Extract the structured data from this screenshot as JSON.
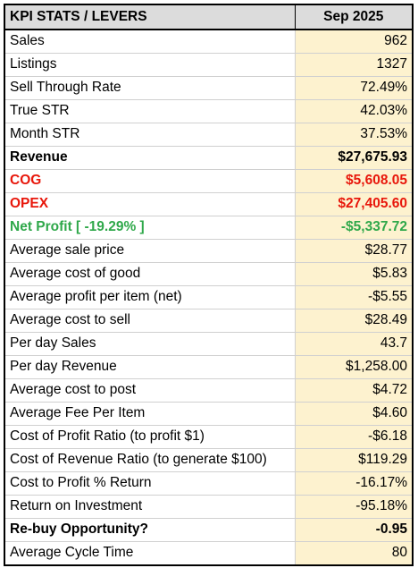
{
  "header": {
    "label": "KPI STATS / LEVERS",
    "period": "Sep 2025"
  },
  "rows": [
    {
      "label": "Sales",
      "value": "962",
      "style": ""
    },
    {
      "label": "Listings",
      "value": "1327",
      "style": ""
    },
    {
      "label": "Sell Through Rate",
      "value": "72.49%",
      "style": ""
    },
    {
      "label": "True STR",
      "value": "42.03%",
      "style": ""
    },
    {
      "label": "Month STR",
      "value": "37.53%",
      "style": ""
    },
    {
      "label": "Revenue",
      "value": "$27,675.93",
      "style": "bold"
    },
    {
      "label": "COG",
      "value": "$5,608.05",
      "style": "bold red"
    },
    {
      "label": "OPEX",
      "value": "$27,405.60",
      "style": "bold red"
    },
    {
      "label": "Net Profit [ -19.29% ]",
      "value": "-$5,337.72",
      "style": "bold green"
    },
    {
      "label": "Average sale price",
      "value": "$28.77",
      "style": ""
    },
    {
      "label": "Average cost of good",
      "value": "$5.83",
      "style": ""
    },
    {
      "label": "Average profit per item (net)",
      "value": "-$5.55",
      "style": ""
    },
    {
      "label": "Average cost to sell",
      "value": "$28.49",
      "style": ""
    },
    {
      "label": "Per day Sales",
      "value": "43.7",
      "style": ""
    },
    {
      "label": "Per day Revenue",
      "value": "$1,258.00",
      "style": ""
    },
    {
      "label": "Average cost to post",
      "value": "$4.72",
      "style": ""
    },
    {
      "label": "Average Fee Per Item",
      "value": "$4.60",
      "style": ""
    },
    {
      "label": "Cost of Profit Ratio (to profit $1)",
      "value": "-$6.18",
      "style": ""
    },
    {
      "label": "Cost of Revenue Ratio (to generate $100)",
      "value": "$119.29",
      "style": ""
    },
    {
      "label": "Cost to Profit % Return",
      "value": "-16.17%",
      "style": ""
    },
    {
      "label": "Return on Investment",
      "value": "-95.18%",
      "style": ""
    },
    {
      "label": "Re-buy Opportunity?",
      "value": "-0.95",
      "style": "bold"
    },
    {
      "label": "Average Cycle Time",
      "value": "80",
      "style": ""
    }
  ],
  "colors": {
    "header_bg": "#dcdcdc",
    "value_bg": "#fdf2cf",
    "red": "#e8170b",
    "green": "#2fa84a"
  }
}
